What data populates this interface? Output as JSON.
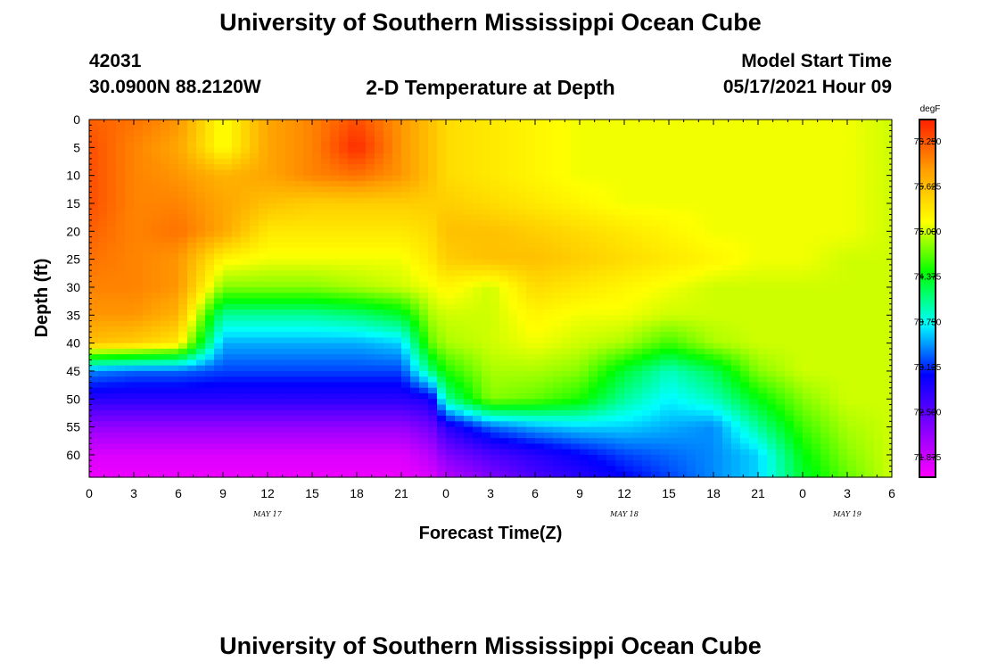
{
  "header": {
    "title": "University of Southern Mississippi Ocean Cube",
    "station_id": "42031",
    "coordinates": "30.0900N  88.2120W",
    "chart_title": "2-D Temperature at Depth",
    "model_start_label": "Model Start Time",
    "model_start_value": "05/17/2021 Hour 09"
  },
  "footer": {
    "title": "University of Southern Mississippi Ocean Cube"
  },
  "colors": {
    "stops": [
      "#ff00ff",
      "#8000ff",
      "#0000ff",
      "#00ffff",
      "#00ff00",
      "#ffff00",
      "#ffa000",
      "#ff2000"
    ]
  },
  "chart_data": {
    "type": "heatmap",
    "title": "2-D Temperature at Depth",
    "xlabel": "Forecast Time(Z)",
    "ylabel": "Depth (ft)",
    "x_ticks": [
      "0",
      "3",
      "6",
      "9",
      "12",
      "15",
      "18",
      "21",
      "0",
      "3",
      "6",
      "9",
      "12",
      "15",
      "18",
      "21",
      "0",
      "3",
      "6"
    ],
    "x_hours": [
      0,
      3,
      6,
      9,
      12,
      15,
      18,
      21,
      24,
      27,
      30,
      33,
      36,
      39,
      42,
      45,
      48,
      51,
      54
    ],
    "xlim": [
      0,
      54
    ],
    "date_labels": [
      {
        "label": "MAY 17",
        "hour": 12
      },
      {
        "label": "MAY 18",
        "hour": 36
      },
      {
        "label": "MAY 19",
        "hour": 51
      }
    ],
    "y_ticks": [
      0,
      5,
      10,
      15,
      20,
      25,
      30,
      35,
      40,
      45,
      50,
      55,
      60
    ],
    "ylim": [
      0,
      64
    ],
    "depths": [
      0,
      5,
      10,
      15,
      20,
      25,
      30,
      35,
      40,
      45,
      50,
      55,
      60,
      64
    ],
    "hours": [
      0,
      3,
      6,
      9,
      12,
      15,
      18,
      21,
      23,
      24,
      27,
      30,
      33,
      36,
      39,
      42,
      45,
      48,
      51,
      54
    ],
    "values": [
      [
        76.2,
        76.1,
        75.9,
        75.1,
        75.8,
        76.0,
        76.3,
        75.9,
        75.6,
        75.4,
        75.3,
        75.2,
        75.1,
        75.1,
        75.1,
        75.1,
        75.1,
        75.1,
        75.1,
        75.0
      ],
      [
        76.3,
        76.0,
        75.8,
        75.1,
        75.8,
        76.0,
        76.5,
        75.9,
        75.6,
        75.4,
        75.3,
        75.2,
        75.1,
        75.1,
        75.1,
        75.1,
        75.1,
        75.1,
        75.1,
        75.0
      ],
      [
        76.3,
        76.0,
        75.9,
        75.7,
        75.8,
        76.0,
        76.1,
        75.9,
        75.6,
        75.4,
        75.3,
        75.2,
        75.1,
        75.1,
        75.1,
        75.1,
        75.1,
        75.1,
        75.1,
        75.0
      ],
      [
        76.3,
        76.0,
        76.0,
        75.8,
        75.6,
        75.5,
        75.5,
        75.5,
        75.5,
        75.5,
        75.4,
        75.3,
        75.2,
        75.1,
        75.1,
        75.1,
        75.1,
        75.1,
        75.1,
        75.0
      ],
      [
        76.2,
        76.0,
        76.1,
        75.8,
        75.3,
        75.3,
        75.3,
        75.3,
        75.4,
        75.6,
        75.6,
        75.5,
        75.4,
        75.3,
        75.2,
        75.1,
        75.1,
        75.1,
        75.1,
        75.0
      ],
      [
        76.1,
        76.0,
        75.9,
        75.2,
        75.1,
        75.1,
        75.1,
        75.1,
        75.3,
        75.5,
        75.6,
        75.6,
        75.5,
        75.4,
        75.3,
        75.2,
        75.1,
        75.1,
        75.0,
        75.0
      ],
      [
        76.0,
        76.0,
        75.9,
        74.8,
        74.8,
        74.8,
        74.9,
        75.0,
        75.1,
        75.2,
        75.0,
        75.4,
        75.3,
        75.2,
        75.1,
        75.0,
        75.0,
        75.0,
        75.0,
        75.0
      ],
      [
        75.9,
        75.9,
        75.7,
        74.0,
        74.0,
        74.0,
        74.1,
        74.3,
        74.9,
        75.0,
        75.0,
        75.2,
        75.1,
        75.1,
        75.0,
        75.0,
        75.0,
        75.0,
        75.0,
        75.0
      ],
      [
        75.6,
        75.5,
        75.3,
        73.5,
        73.5,
        73.5,
        73.5,
        73.6,
        74.7,
        74.9,
        75.0,
        75.1,
        75.0,
        74.9,
        74.6,
        74.9,
        75.0,
        75.0,
        75.0,
        75.0
      ],
      [
        73.4,
        73.3,
        73.3,
        73.2,
        73.2,
        73.2,
        73.2,
        73.2,
        74.1,
        74.5,
        74.9,
        74.9,
        74.8,
        74.3,
        73.9,
        74.2,
        74.8,
        75.0,
        75.0,
        75.0
      ],
      [
        72.8,
        72.8,
        72.8,
        72.8,
        72.8,
        72.8,
        72.8,
        72.8,
        72.9,
        74.0,
        74.8,
        74.7,
        74.5,
        74.0,
        73.7,
        73.9,
        74.4,
        74.8,
        75.0,
        75.0
      ],
      [
        72.2,
        72.2,
        72.2,
        72.2,
        72.2,
        72.2,
        72.2,
        72.2,
        72.4,
        72.8,
        73.3,
        73.5,
        73.6,
        73.6,
        73.5,
        73.4,
        74.0,
        74.6,
        74.9,
        75.0
      ],
      [
        71.8,
        71.8,
        71.8,
        71.8,
        71.8,
        71.8,
        71.8,
        71.8,
        72.0,
        72.3,
        72.6,
        72.8,
        73.0,
        73.2,
        73.3,
        73.4,
        73.6,
        74.4,
        74.8,
        75.0
      ],
      [
        71.7,
        71.7,
        71.7,
        71.7,
        71.7,
        71.7,
        71.7,
        71.7,
        71.8,
        72.0,
        72.3,
        72.6,
        72.8,
        73.0,
        73.2,
        73.4,
        73.6,
        74.3,
        74.7,
        75.0
      ]
    ],
    "colorbar": {
      "unit": "degF",
      "min": 71.6,
      "max": 76.55,
      "ticks": [
        "76.250",
        "75.625",
        "75.000",
        "74.375",
        "73.750",
        "73.125",
        "72.500",
        "71.875"
      ],
      "tick_values": [
        76.25,
        75.625,
        75.0,
        74.375,
        73.75,
        73.125,
        72.5,
        71.875
      ]
    },
    "grid": false,
    "legend": "right"
  }
}
